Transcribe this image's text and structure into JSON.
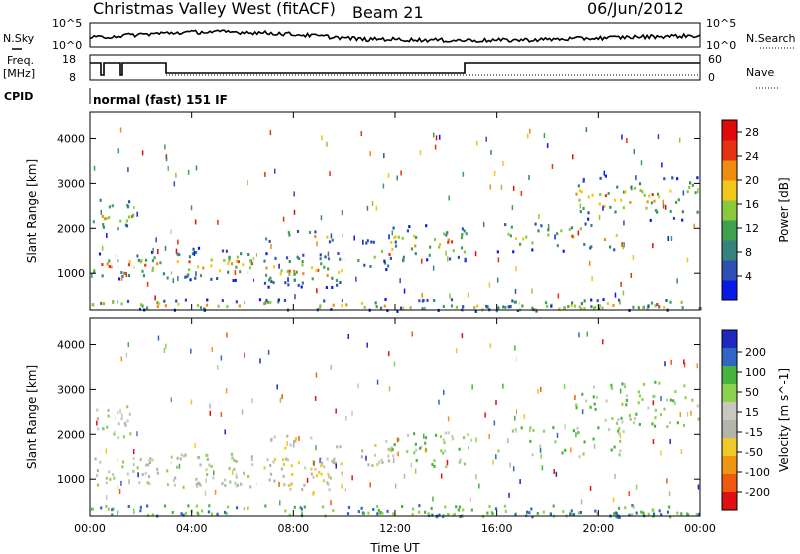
{
  "header": {
    "station": "Christmas Valley West (fitACF)",
    "beam": "Beam 21",
    "date": "06/Jun/2012"
  },
  "noise_panel": {
    "left_label": "N.Sky",
    "right_label": "N.Search",
    "ticks": [
      "10^5",
      "10^0"
    ]
  },
  "freq_panel": {
    "left_label_line1": "Freq.",
    "left_label_line2": "[MHz]",
    "right_label": "Nave",
    "left_ticks": [
      "18",
      "8"
    ],
    "right_ticks": [
      "60",
      "0"
    ]
  },
  "cpid": {
    "label": "CPID",
    "text": "normal (fast) 151 IF"
  },
  "colors": {
    "power_scale": [
      "#0a1ae6",
      "#2d4fb4",
      "#37827a",
      "#3fa050",
      "#8cc83c",
      "#f0c819",
      "#f08c0f",
      "#e63212",
      "#e10a0a"
    ],
    "velocity_scale": [
      "#1e28be",
      "#2f66c4",
      "#46b43c",
      "#8cd250",
      "#c8c8c0",
      "#b4b4aa",
      "#f0c828",
      "#f09614",
      "#ee5a0f",
      "#e01010"
    ]
  },
  "chart_data": [
    {
      "type": "heatmap",
      "name": "power",
      "xlabel": "",
      "ylabel": "Slant Range [km]",
      "x_ticks": [
        "00:00",
        "04:00",
        "08:00",
        "12:00",
        "16:00",
        "20:00",
        "00:00"
      ],
      "y_ticks": [
        "1000",
        "2000",
        "3000",
        "4000"
      ],
      "xlim": [
        0,
        24
      ],
      "ylim": [
        180,
        4590
      ],
      "colorbar_label": "Power [dB]",
      "colorbar_ticks": [
        "4",
        "8",
        "12",
        "16",
        "20",
        "24",
        "28"
      ],
      "colorbar_range": [
        0,
        30
      ]
    },
    {
      "type": "heatmap",
      "name": "velocity",
      "xlabel": "Time UT",
      "ylabel": "Slant Range [km]",
      "x_ticks": [
        "00:00",
        "04:00",
        "08:00",
        "12:00",
        "16:00",
        "20:00",
        "00:00"
      ],
      "y_ticks": [
        "1000",
        "2000",
        "3000",
        "4000"
      ],
      "xlim": [
        0,
        24
      ],
      "ylim": [
        180,
        4590
      ],
      "colorbar_label": "Velocity [m s^-1]",
      "colorbar_ticks": [
        "200",
        "100",
        "50",
        "15",
        "-15",
        "-50",
        "-100",
        "-200"
      ]
    }
  ]
}
